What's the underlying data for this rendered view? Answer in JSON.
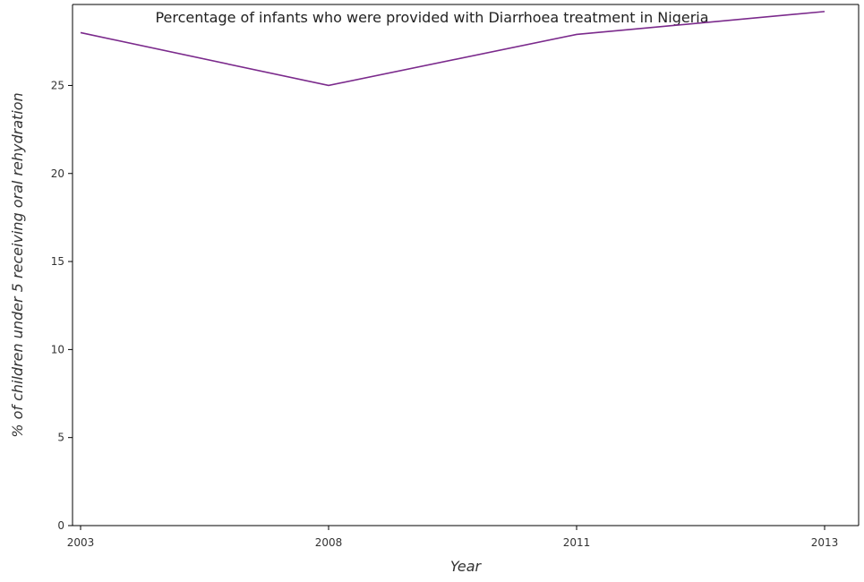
{
  "chart_data": {
    "type": "line",
    "title": "Percentage of infants who were provided with Diarrhoea treatment in Nigeria",
    "xlabel": "Year",
    "ylabel": "% of children under 5 receiving oral rehydration",
    "categories": [
      "2003",
      "2008",
      "2011",
      "2013"
    ],
    "series": [
      {
        "values": [
          28.0,
          25.0,
          27.9,
          29.2
        ]
      }
    ],
    "ylim": [
      0,
      29.6
    ],
    "yticks": [
      0,
      5,
      10,
      15,
      20,
      25
    ],
    "grid": false,
    "line_color": "#7b2a8c"
  }
}
